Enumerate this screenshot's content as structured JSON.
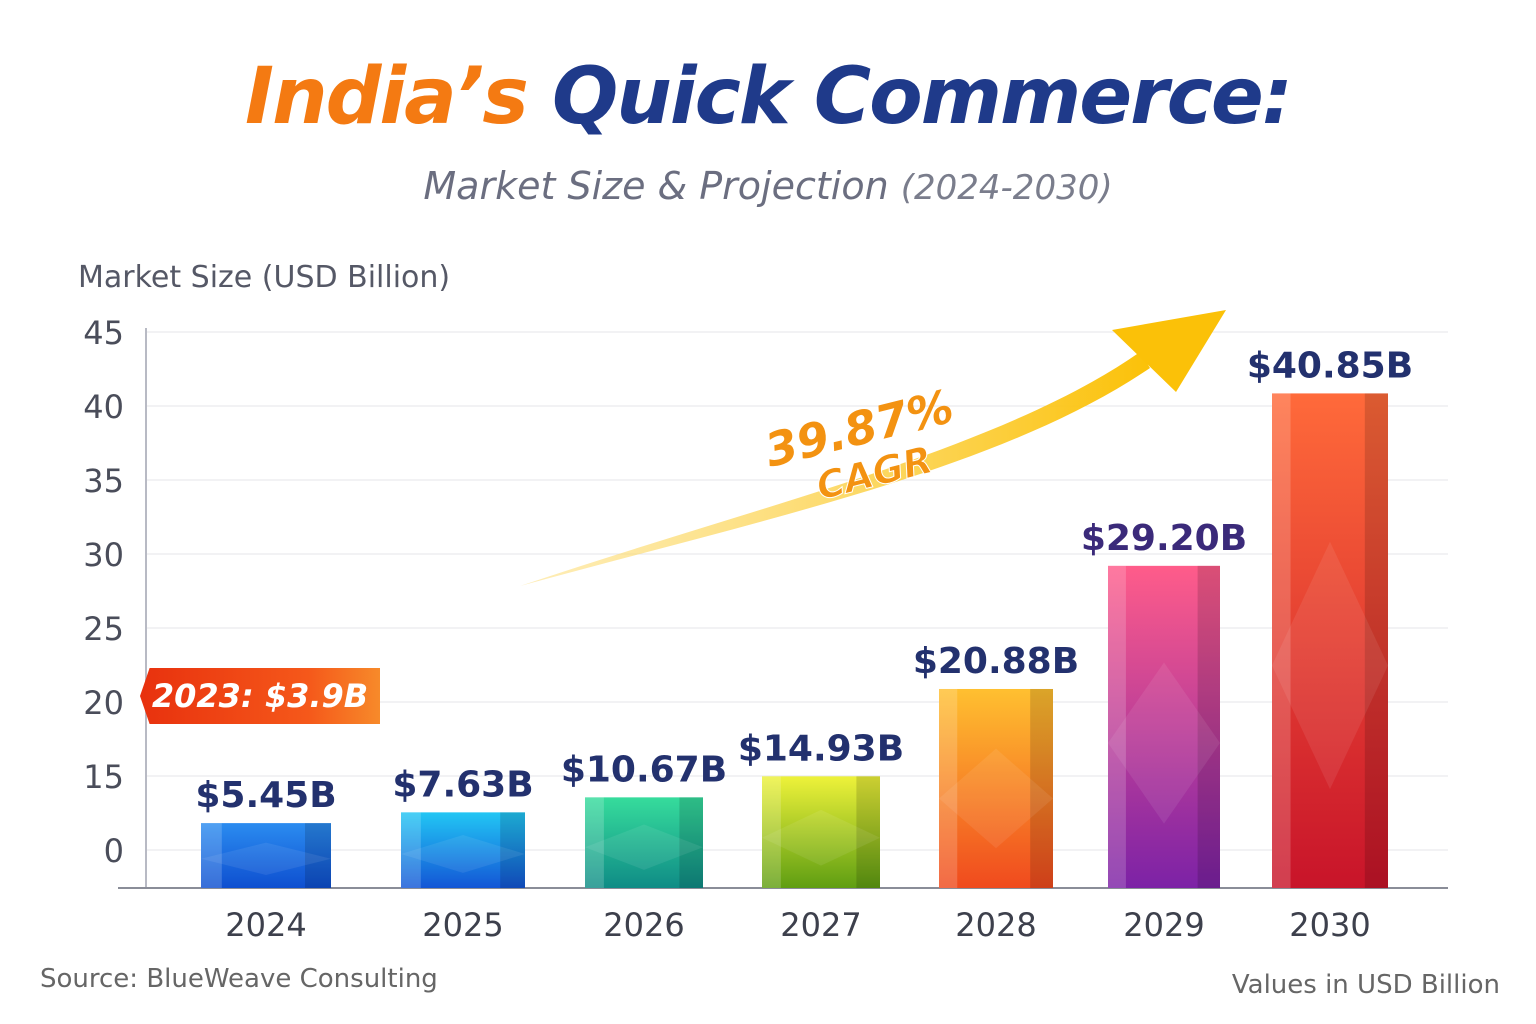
{
  "header": {
    "title_part1": "India’s",
    "title_part2": "Quick Commerce:",
    "subtitle": "Market Size & Projection",
    "subtitle_years": "(2024-2030)"
  },
  "footer": {
    "source": "Source: BlueWeave Consulting",
    "units_note": "Values in USD Billion"
  },
  "badge": {
    "label": "2023: $3.9B"
  },
  "colors": {
    "title_orange": "#f47a12",
    "title_navy": "#1f3a8a",
    "label_navy": "#23316e",
    "cagr_orange": "#f39211",
    "arrow_yellow": "#fbc108"
  },
  "chart_data": {
    "type": "bar",
    "title": "India’s Quick Commerce: Market Size & Projection (2024-2030)",
    "ylabel": "Market Size (USD Billion)",
    "xlabel": "",
    "y_ticks": [
      0,
      15,
      20,
      25,
      30,
      35,
      40,
      45
    ],
    "grid": true,
    "categories": [
      "2024",
      "2025",
      "2026",
      "2027",
      "2028",
      "2029",
      "2030"
    ],
    "values": [
      5.45,
      7.63,
      10.67,
      14.93,
      20.88,
      29.2,
      40.85
    ],
    "value_labels": [
      "$5.45B",
      "$7.63B",
      "$10.67B",
      "$14.93B",
      "$20.88B",
      "$29.20B",
      "$40.85B"
    ],
    "bar_colors": [
      [
        "#2b8cf0",
        "#0e4fd0"
      ],
      [
        "#22c6f4",
        "#1356d6"
      ],
      [
        "#36dc9c",
        "#0f8c86"
      ],
      [
        "#eef23a",
        "#5f9e12"
      ],
      [
        "#ffc030",
        "#f04a1e"
      ],
      [
        "#ff5c8a",
        "#7c22a6"
      ],
      [
        "#ff6a3a",
        "#c8142a"
      ]
    ],
    "annotation": {
      "cagr_value": "39.87%",
      "cagr_label": "CAGR"
    }
  }
}
